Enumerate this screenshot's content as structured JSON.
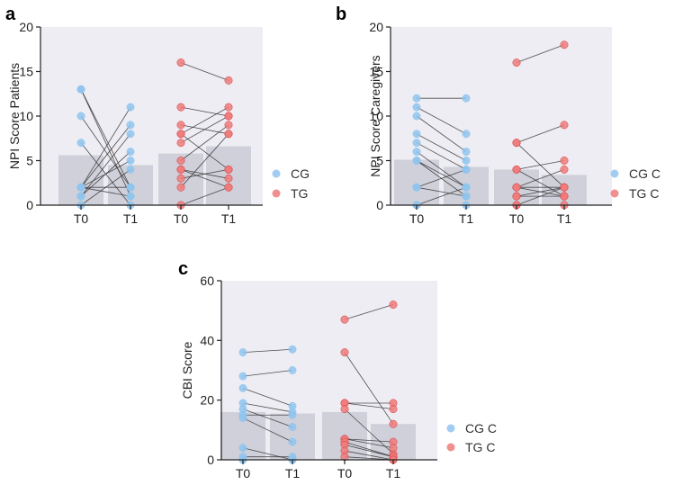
{
  "colors": {
    "cg": "#8fc4ef",
    "tg": "#ee7b7b",
    "tg_dark": "#e03535",
    "bar": "#cfd0da",
    "plot_bg": "#ededf3",
    "axis": "#222222",
    "line": "#333333"
  },
  "chart_data": [
    {
      "type": "bar",
      "panel": "a",
      "ylabel": "NPI Score Patients",
      "ylim": [
        0,
        20
      ],
      "yticks": [
        0,
        5,
        10,
        15,
        20
      ],
      "categories": [
        "T0",
        "T1",
        "T0",
        "T1"
      ],
      "legend": [
        "CG",
        "TG"
      ],
      "bars": [
        5.6,
        4.5,
        5.8,
        6.6
      ],
      "groups": [
        {
          "name": "CG",
          "pairs": [
            [
              13,
              2
            ],
            [
              13,
              1
            ],
            [
              10,
              2
            ],
            [
              7,
              0
            ],
            [
              2,
              11
            ],
            [
              2,
              9
            ],
            [
              1,
              8
            ],
            [
              1,
              6
            ],
            [
              2,
              5
            ],
            [
              0,
              4
            ],
            [
              2,
              2
            ],
            [
              2,
              1
            ]
          ]
        },
        {
          "name": "TG",
          "pairs": [
            [
              16,
              14
            ],
            [
              11,
              10
            ],
            [
              9,
              8
            ],
            [
              8,
              4
            ],
            [
              8,
              11
            ],
            [
              7,
              10
            ],
            [
              5,
              9
            ],
            [
              4,
              3
            ],
            [
              4,
              2
            ],
            [
              3,
              4
            ],
            [
              2,
              8
            ],
            [
              0,
              2
            ]
          ]
        }
      ]
    },
    {
      "type": "bar",
      "panel": "b",
      "ylabel": "NPI Score Caregivers",
      "ylim": [
        0,
        20
      ],
      "yticks": [
        0,
        5,
        10,
        15,
        20
      ],
      "categories": [
        "T0",
        "T1",
        "T0",
        "T1"
      ],
      "legend": [
        "CG C",
        "TG C"
      ],
      "bars": [
        5.1,
        4.3,
        4.0,
        3.4
      ],
      "groups": [
        {
          "name": "CG C",
          "pairs": [
            [
              12,
              12
            ],
            [
              11,
              8
            ],
            [
              10,
              6
            ],
            [
              8,
              5
            ],
            [
              7,
              4
            ],
            [
              6,
              2
            ],
            [
              5,
              2
            ],
            [
              5,
              1
            ],
            [
              2,
              1
            ],
            [
              2,
              4
            ],
            [
              0,
              2
            ],
            [
              0,
              0
            ]
          ]
        },
        {
          "name": "TG C",
          "pairs": [
            [
              16,
              18
            ],
            [
              7,
              9
            ],
            [
              7,
              2
            ],
            [
              4,
              5
            ],
            [
              4,
              1
            ],
            [
              2,
              4
            ],
            [
              2,
              2
            ],
            [
              2,
              1
            ],
            [
              1,
              2
            ],
            [
              1,
              1
            ],
            [
              0,
              0
            ],
            [
              0,
              2
            ]
          ]
        }
      ]
    },
    {
      "type": "bar",
      "panel": "c",
      "ylabel": "CBI Score",
      "ylim": [
        0,
        60
      ],
      "yticks": [
        0,
        20,
        40,
        60
      ],
      "categories": [
        "T0",
        "T1",
        "T0",
        "T1"
      ],
      "legend": [
        "CG C",
        "TG C"
      ],
      "bars": [
        16,
        15.5,
        16,
        12
      ],
      "groups": [
        {
          "name": "CG C",
          "pairs": [
            [
              36,
              37
            ],
            [
              28,
              30
            ],
            [
              24,
              18
            ],
            [
              19,
              16
            ],
            [
              17,
              11
            ],
            [
              15,
              15
            ],
            [
              14,
              6
            ],
            [
              4,
              0
            ],
            [
              1,
              1
            ],
            [
              0,
              0
            ],
            [
              0,
              0
            ]
          ]
        },
        {
          "name": "TG C",
          "pairs": [
            [
              47,
              52
            ],
            [
              36,
              12
            ],
            [
              19,
              19
            ],
            [
              19,
              17
            ],
            [
              17,
              2
            ],
            [
              7,
              6
            ],
            [
              7,
              4
            ],
            [
              6,
              1
            ],
            [
              5,
              1
            ],
            [
              3,
              0
            ],
            [
              1,
              0
            ]
          ]
        }
      ]
    }
  ]
}
